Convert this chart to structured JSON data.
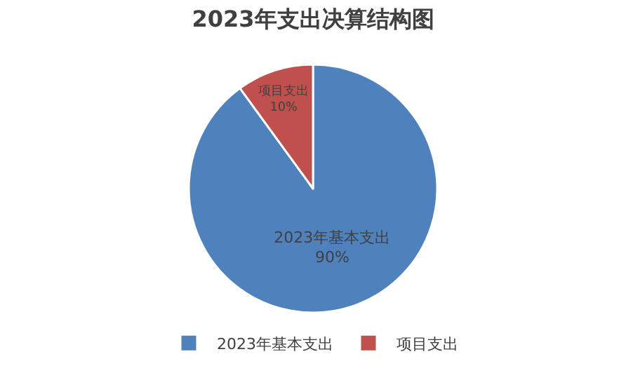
{
  "chart_data": {
    "type": "pie",
    "title": "2023年支出决算结构图",
    "categories": [
      "2023年基本支出",
      "项目支出"
    ],
    "values": [
      90,
      10
    ],
    "colors": [
      "#4f81bd",
      "#c0504d"
    ],
    "value_labels": [
      "90%",
      "10%"
    ],
    "legend": "bottom"
  }
}
